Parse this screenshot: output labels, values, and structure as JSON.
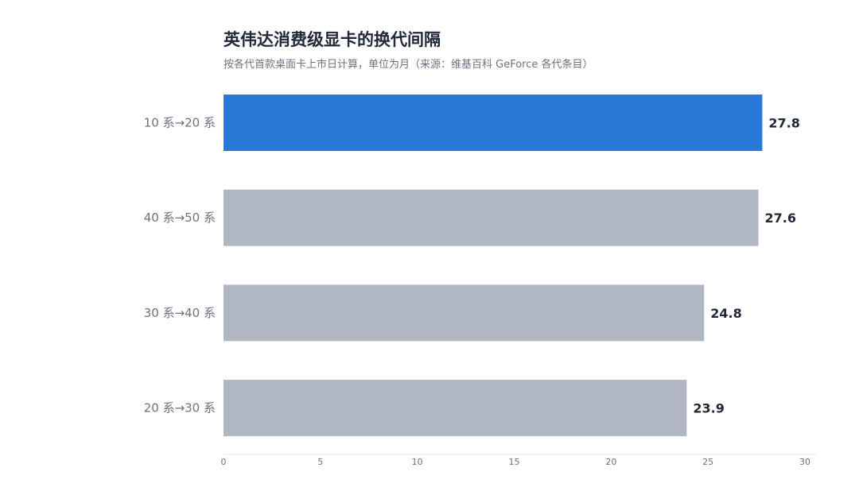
{
  "chart_data": {
    "type": "bar",
    "orientation": "horizontal",
    "title": "英伟达消费级显卡的换代间隔",
    "subtitle": "按各代首款桌面卡上市日计算，单位为月（来源：维基百科 GeForce 各代条目）",
    "categories": [
      "10 系→20 系",
      "40 系→50 系",
      "30 系→40 系",
      "20 系→30 系"
    ],
    "values": [
      27.8,
      27.6,
      24.8,
      23.9
    ],
    "value_labels": [
      "27.8",
      "27.6",
      "24.8",
      "23.9"
    ],
    "xlim": [
      0,
      30
    ],
    "xticks": [
      "0",
      "5",
      "10",
      "15",
      "20",
      "25",
      "30"
    ],
    "highlight_index": 0,
    "colors": {
      "highlight": "#2977d6",
      "default": "#b0b7c3",
      "axis": "#e5e7eb"
    }
  }
}
